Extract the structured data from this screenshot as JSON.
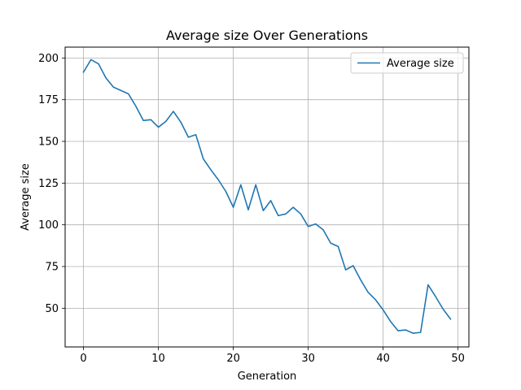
{
  "chart_data": {
    "type": "line",
    "title": "Average size Over Generations",
    "xlabel": "Generation",
    "ylabel": "Average size",
    "xlim": [
      -2.45,
      51.45
    ],
    "ylim": [
      26.8,
      206.5
    ],
    "xticks": [
      0,
      10,
      20,
      30,
      40,
      50
    ],
    "yticks": [
      50,
      75,
      100,
      125,
      150,
      175,
      200
    ],
    "grid": true,
    "legend_position": "top-right",
    "series": [
      {
        "name": "Average size",
        "color": "#1f77b4",
        "x": [
          0,
          1,
          2,
          3,
          4,
          5,
          6,
          7,
          8,
          9,
          10,
          11,
          12,
          13,
          14,
          15,
          16,
          17,
          18,
          19,
          20,
          21,
          22,
          23,
          24,
          25,
          26,
          27,
          28,
          29,
          30,
          31,
          32,
          33,
          34,
          35,
          36,
          37,
          38,
          39,
          40,
          41,
          42,
          43,
          44,
          45,
          46,
          47,
          48,
          49
        ],
        "y": [
          191.5,
          199,
          196.5,
          188,
          182.5,
          180.5,
          178.5,
          171,
          162.5,
          163,
          158.5,
          162,
          168,
          161.5,
          152.5,
          154,
          139.5,
          133,
          127,
          120,
          110.5,
          124,
          109,
          124,
          108.5,
          114.5,
          105.5,
          106.5,
          110.5,
          106.5,
          99,
          100.5,
          97,
          89,
          87,
          73,
          75.5,
          67,
          59.5,
          55,
          49,
          42,
          36.5,
          37,
          35,
          35.5,
          64,
          57,
          49.5,
          43.5
        ]
      }
    ]
  }
}
